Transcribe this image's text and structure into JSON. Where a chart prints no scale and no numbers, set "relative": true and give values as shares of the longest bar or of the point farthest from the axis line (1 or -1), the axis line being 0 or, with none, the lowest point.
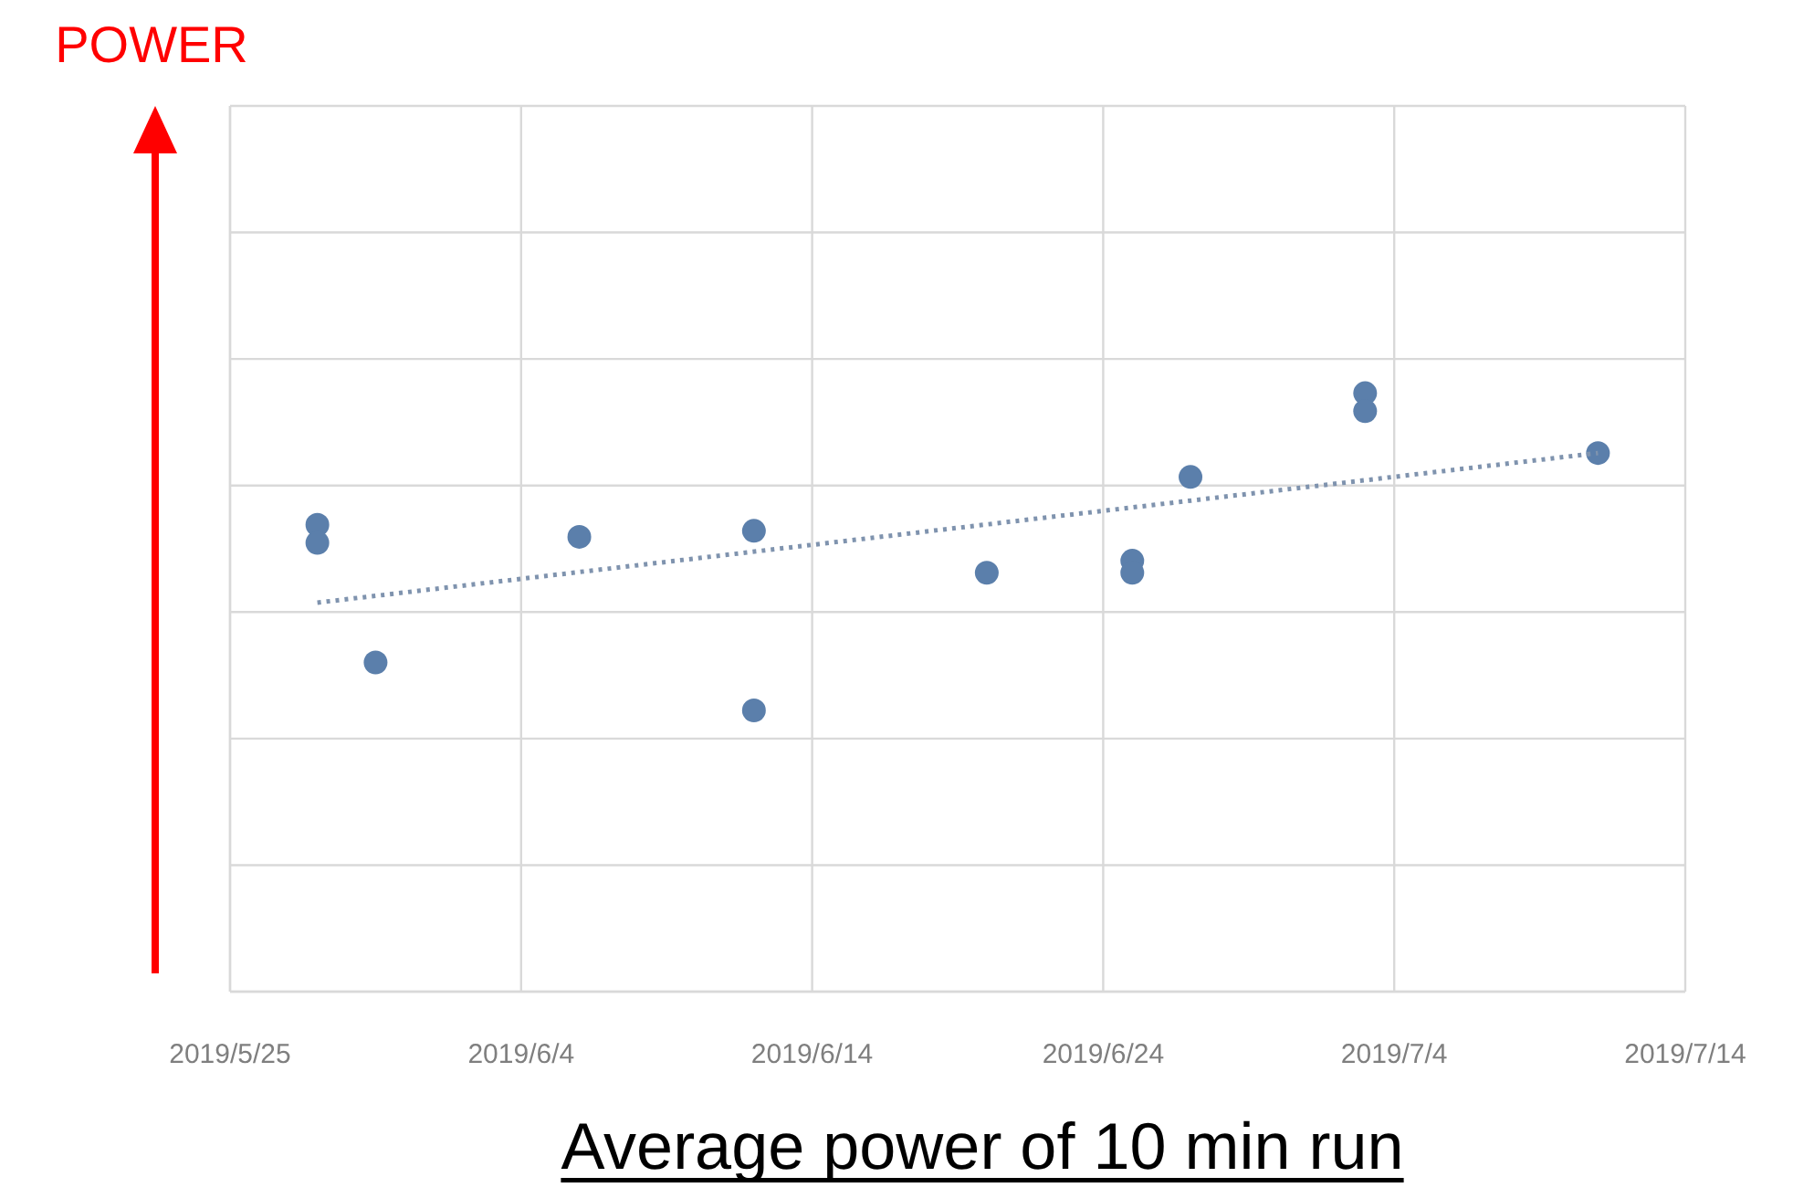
{
  "chart_data": {
    "type": "scatter",
    "xlabel": "Average power of 10 min run",
    "annotations": [
      "POWER"
    ],
    "relative": true,
    "grid": true,
    "legend": false,
    "marker": "circle",
    "xlim": [
      "2019-05-25",
      "2019-07-14"
    ],
    "xticks": [
      {
        "value": "2019-05-25",
        "label": "2019/5/25"
      },
      {
        "value": "2019-06-04",
        "label": "2019/6/4"
      },
      {
        "value": "2019-06-14",
        "label": "2019/6/14"
      },
      {
        "value": "2019-06-24",
        "label": "2019/6/24"
      },
      {
        "value": "2019-07-04",
        "label": "2019/7/4"
      },
      {
        "value": "2019-07-14",
        "label": "2019/7/14"
      }
    ],
    "series": [
      {
        "color": "#5b7fab",
        "x": [
          "2019-05-28",
          "2019-05-28",
          "2019-05-30",
          "2019-06-06",
          "2019-06-12",
          "2019-06-12",
          "2019-06-20",
          "2019-06-25",
          "2019-06-25",
          "2019-06-27",
          "2019-07-03",
          "2019-07-03",
          "2019-07-11"
        ],
        "values": [
          0.78,
          0.75,
          0.55,
          0.76,
          0.77,
          0.47,
          0.7,
          0.72,
          0.7,
          0.86,
          1,
          0.97,
          0.9
        ]
      },
      {
        "type": "line",
        "color": "#7f93ae",
        "line_style": "dotted",
        "marker": "none",
        "x": [
          "2019-05-28",
          "2019-07-11"
        ],
        "values": [
          0.65,
          0.9
        ]
      }
    ]
  }
}
